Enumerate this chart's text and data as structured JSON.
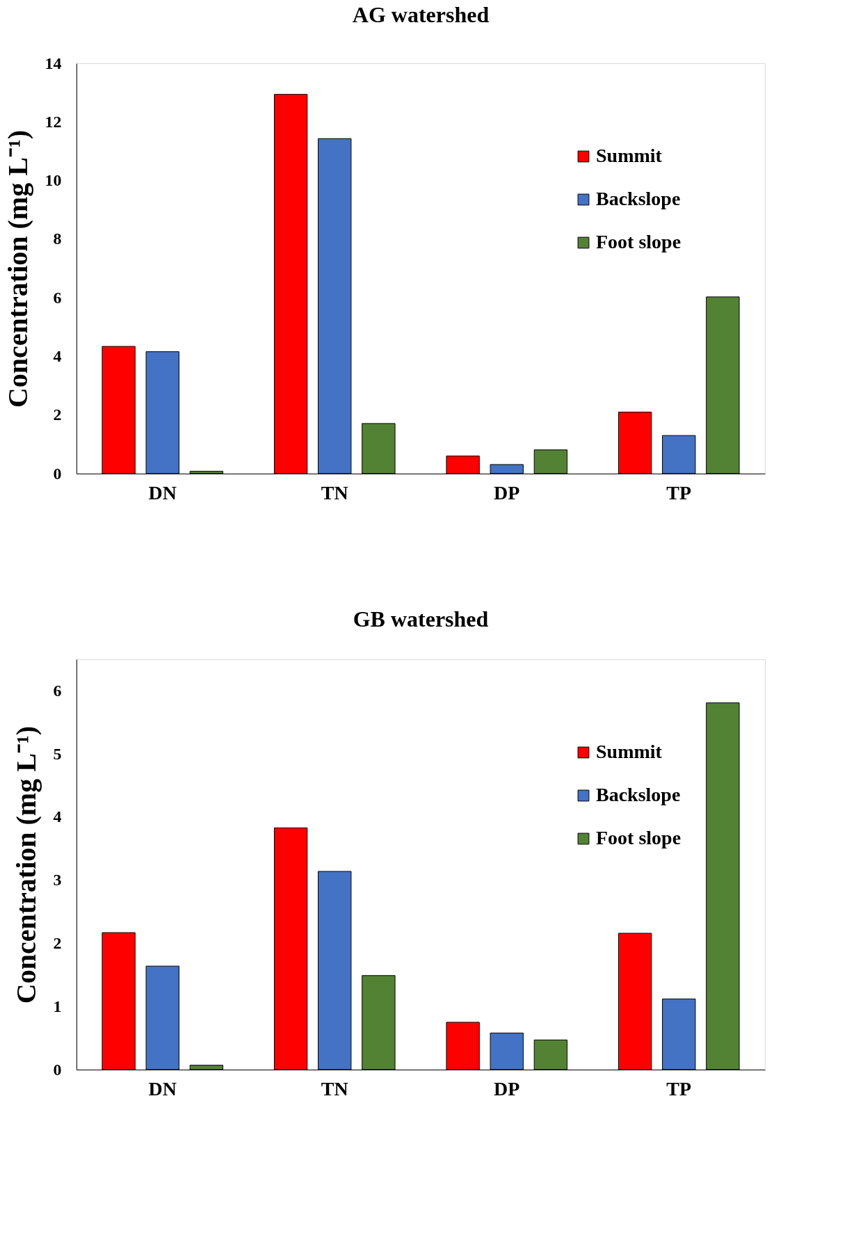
{
  "chart_data": [
    {
      "type": "bar",
      "title": "AG watershed",
      "ylabel": "Concentration (mg L⁻¹)",
      "categories": [
        "DN",
        "TN",
        "DP",
        "TP"
      ],
      "ylim": [
        0,
        14
      ],
      "yticks": [
        0,
        2,
        4,
        6,
        8,
        10,
        12,
        14
      ],
      "grid": false,
      "legend": "top right",
      "series": [
        {
          "name": "Summit",
          "color": "#ff0000",
          "values": [
            4.34,
            12.94,
            0.6,
            2.1
          ]
        },
        {
          "name": "Backslope",
          "color": "#4472c4",
          "values": [
            4.16,
            11.43,
            0.31,
            1.3
          ]
        },
        {
          "name": "Foot slope",
          "color": "#548235",
          "values": [
            0.08,
            1.71,
            0.81,
            6.03
          ]
        }
      ]
    },
    {
      "type": "bar",
      "title": "GB watershed",
      "ylabel": "Concentration (mg L⁻¹)",
      "categories": [
        "DN",
        "TN",
        "DP",
        "TP"
      ],
      "ylim": [
        0,
        6.5
      ],
      "yticks": [
        0,
        1,
        2,
        3,
        4,
        5,
        6
      ],
      "grid": false,
      "legend": "top right",
      "series": [
        {
          "name": "Summit",
          "color": "#ff0000",
          "values": [
            2.17,
            3.83,
            0.75,
            2.16
          ]
        },
        {
          "name": "Backslope",
          "color": "#4472c4",
          "values": [
            1.64,
            3.14,
            0.58,
            1.12
          ]
        },
        {
          "name": "Foot slope",
          "color": "#548235",
          "values": [
            0.07,
            1.49,
            0.47,
            5.81
          ]
        }
      ]
    }
  ]
}
